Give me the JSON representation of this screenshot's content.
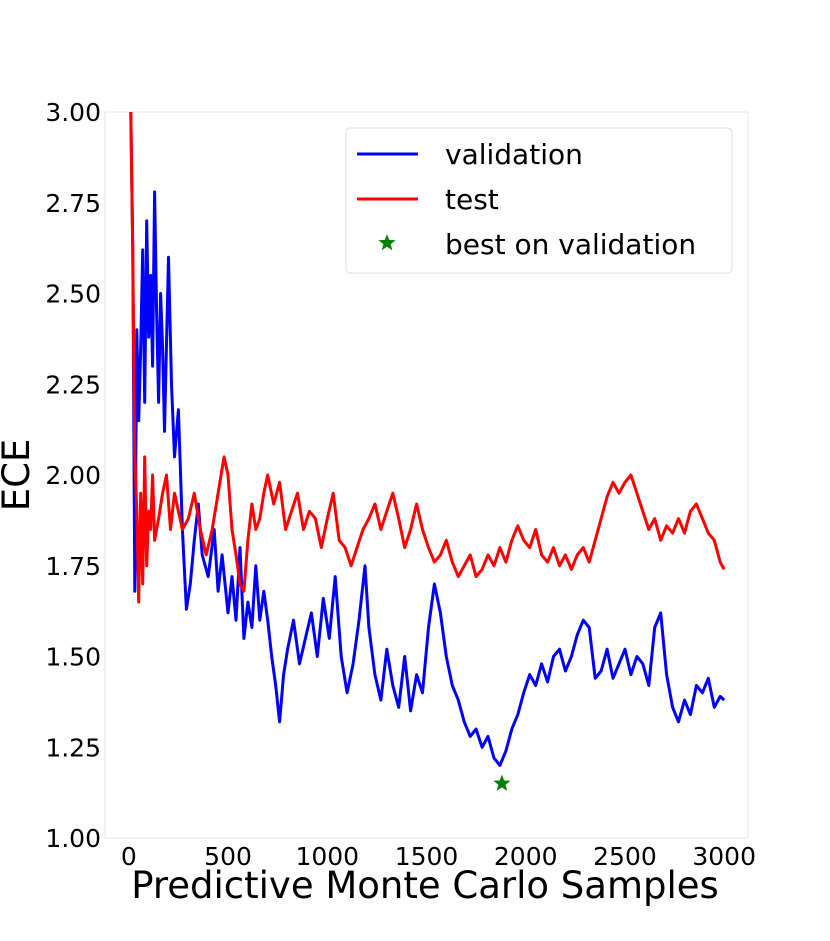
{
  "chart_data": {
    "type": "line",
    "title": "",
    "xlabel": "Predictive Monte Carlo Samples",
    "ylabel": "ECE",
    "xlim": [
      -120,
      3120
    ],
    "ylim": [
      1.0,
      3.0
    ],
    "xticks": [
      "0",
      "500",
      "1000",
      "1500",
      "2000",
      "2500",
      "3000"
    ],
    "yticks": [
      "1.00",
      "1.25",
      "1.50",
      "1.75",
      "2.00",
      "2.25",
      "2.50",
      "2.75",
      "3.00"
    ],
    "grid": false,
    "legend_position": "top-right",
    "series": [
      {
        "name": "validation",
        "color": "#0000ff",
        "points": [
          [
            10,
            3.0
          ],
          [
            20,
            2.62
          ],
          [
            30,
            1.68
          ],
          [
            40,
            2.4
          ],
          [
            50,
            2.15
          ],
          [
            60,
            2.35
          ],
          [
            70,
            2.62
          ],
          [
            80,
            2.2
          ],
          [
            90,
            2.7
          ],
          [
            100,
            2.38
          ],
          [
            110,
            2.55
          ],
          [
            120,
            2.3
          ],
          [
            130,
            2.78
          ],
          [
            140,
            2.45
          ],
          [
            150,
            2.2
          ],
          [
            160,
            2.5
          ],
          [
            170,
            2.35
          ],
          [
            180,
            2.12
          ],
          [
            200,
            2.6
          ],
          [
            215,
            2.25
          ],
          [
            230,
            2.05
          ],
          [
            250,
            2.18
          ],
          [
            270,
            1.85
          ],
          [
            290,
            1.63
          ],
          [
            310,
            1.7
          ],
          [
            330,
            1.82
          ],
          [
            350,
            1.92
          ],
          [
            370,
            1.78
          ],
          [
            400,
            1.72
          ],
          [
            430,
            1.85
          ],
          [
            450,
            1.68
          ],
          [
            470,
            1.78
          ],
          [
            500,
            1.62
          ],
          [
            520,
            1.72
          ],
          [
            540,
            1.6
          ],
          [
            560,
            1.8
          ],
          [
            580,
            1.55
          ],
          [
            600,
            1.65
          ],
          [
            620,
            1.58
          ],
          [
            640,
            1.75
          ],
          [
            660,
            1.6
          ],
          [
            680,
            1.68
          ],
          [
            700,
            1.6
          ],
          [
            720,
            1.5
          ],
          [
            740,
            1.42
          ],
          [
            760,
            1.32
          ],
          [
            780,
            1.45
          ],
          [
            800,
            1.52
          ],
          [
            830,
            1.6
          ],
          [
            860,
            1.48
          ],
          [
            890,
            1.55
          ],
          [
            920,
            1.62
          ],
          [
            950,
            1.5
          ],
          [
            980,
            1.66
          ],
          [
            1010,
            1.55
          ],
          [
            1040,
            1.72
          ],
          [
            1070,
            1.5
          ],
          [
            1100,
            1.4
          ],
          [
            1130,
            1.48
          ],
          [
            1160,
            1.6
          ],
          [
            1190,
            1.75
          ],
          [
            1210,
            1.58
          ],
          [
            1240,
            1.45
          ],
          [
            1270,
            1.38
          ],
          [
            1300,
            1.52
          ],
          [
            1330,
            1.42
          ],
          [
            1360,
            1.36
          ],
          [
            1390,
            1.5
          ],
          [
            1420,
            1.35
          ],
          [
            1450,
            1.45
          ],
          [
            1480,
            1.4
          ],
          [
            1510,
            1.58
          ],
          [
            1540,
            1.7
          ],
          [
            1570,
            1.62
          ],
          [
            1600,
            1.5
          ],
          [
            1630,
            1.42
          ],
          [
            1660,
            1.38
          ],
          [
            1690,
            1.32
          ],
          [
            1720,
            1.28
          ],
          [
            1750,
            1.3
          ],
          [
            1780,
            1.25
          ],
          [
            1810,
            1.28
          ],
          [
            1840,
            1.22
          ],
          [
            1870,
            1.2
          ],
          [
            1900,
            1.24
          ],
          [
            1930,
            1.3
          ],
          [
            1960,
            1.34
          ],
          [
            1990,
            1.4
          ],
          [
            2020,
            1.45
          ],
          [
            2050,
            1.42
          ],
          [
            2080,
            1.48
          ],
          [
            2110,
            1.43
          ],
          [
            2140,
            1.5
          ],
          [
            2170,
            1.52
          ],
          [
            2200,
            1.46
          ],
          [
            2230,
            1.5
          ],
          [
            2260,
            1.56
          ],
          [
            2290,
            1.6
          ],
          [
            2320,
            1.58
          ],
          [
            2350,
            1.44
          ],
          [
            2380,
            1.46
          ],
          [
            2410,
            1.52
          ],
          [
            2440,
            1.44
          ],
          [
            2470,
            1.48
          ],
          [
            2500,
            1.52
          ],
          [
            2530,
            1.45
          ],
          [
            2560,
            1.5
          ],
          [
            2590,
            1.48
          ],
          [
            2620,
            1.42
          ],
          [
            2650,
            1.58
          ],
          [
            2680,
            1.62
          ],
          [
            2710,
            1.45
          ],
          [
            2740,
            1.36
          ],
          [
            2770,
            1.32
          ],
          [
            2800,
            1.38
          ],
          [
            2830,
            1.34
          ],
          [
            2860,
            1.42
          ],
          [
            2890,
            1.4
          ],
          [
            2920,
            1.44
          ],
          [
            2950,
            1.36
          ],
          [
            2980,
            1.39
          ],
          [
            3000,
            1.38
          ]
        ]
      },
      {
        "name": "test",
        "color": "#ff0000",
        "points": [
          [
            10,
            3.0
          ],
          [
            20,
            2.6
          ],
          [
            30,
            2.05
          ],
          [
            40,
            1.9
          ],
          [
            50,
            1.65
          ],
          [
            60,
            1.95
          ],
          [
            70,
            1.7
          ],
          [
            80,
            2.05
          ],
          [
            90,
            1.75
          ],
          [
            100,
            1.9
          ],
          [
            110,
            1.85
          ],
          [
            120,
            2.0
          ],
          [
            130,
            1.82
          ],
          [
            150,
            1.88
          ],
          [
            170,
            1.95
          ],
          [
            190,
            2.0
          ],
          [
            210,
            1.85
          ],
          [
            230,
            1.95
          ],
          [
            250,
            1.9
          ],
          [
            270,
            1.85
          ],
          [
            300,
            1.88
          ],
          [
            330,
            1.95
          ],
          [
            360,
            1.85
          ],
          [
            390,
            1.78
          ],
          [
            420,
            1.85
          ],
          [
            450,
            1.95
          ],
          [
            480,
            2.05
          ],
          [
            500,
            2.0
          ],
          [
            520,
            1.85
          ],
          [
            540,
            1.78
          ],
          [
            560,
            1.7
          ],
          [
            580,
            1.68
          ],
          [
            600,
            1.82
          ],
          [
            620,
            1.92
          ],
          [
            640,
            1.85
          ],
          [
            660,
            1.88
          ],
          [
            680,
            1.95
          ],
          [
            700,
            2.0
          ],
          [
            730,
            1.92
          ],
          [
            760,
            1.98
          ],
          [
            790,
            1.85
          ],
          [
            820,
            1.9
          ],
          [
            850,
            1.95
          ],
          [
            880,
            1.85
          ],
          [
            910,
            1.9
          ],
          [
            940,
            1.88
          ],
          [
            970,
            1.8
          ],
          [
            1000,
            1.88
          ],
          [
            1030,
            1.95
          ],
          [
            1060,
            1.82
          ],
          [
            1090,
            1.8
          ],
          [
            1120,
            1.75
          ],
          [
            1150,
            1.8
          ],
          [
            1180,
            1.85
          ],
          [
            1210,
            1.88
          ],
          [
            1240,
            1.92
          ],
          [
            1270,
            1.85
          ],
          [
            1300,
            1.9
          ],
          [
            1330,
            1.95
          ],
          [
            1360,
            1.88
          ],
          [
            1390,
            1.8
          ],
          [
            1420,
            1.85
          ],
          [
            1450,
            1.92
          ],
          [
            1480,
            1.85
          ],
          [
            1510,
            1.8
          ],
          [
            1540,
            1.76
          ],
          [
            1570,
            1.78
          ],
          [
            1600,
            1.82
          ],
          [
            1630,
            1.76
          ],
          [
            1660,
            1.72
          ],
          [
            1690,
            1.75
          ],
          [
            1720,
            1.78
          ],
          [
            1750,
            1.72
          ],
          [
            1780,
            1.74
          ],
          [
            1810,
            1.78
          ],
          [
            1840,
            1.75
          ],
          [
            1870,
            1.8
          ],
          [
            1900,
            1.76
          ],
          [
            1930,
            1.82
          ],
          [
            1960,
            1.86
          ],
          [
            1990,
            1.82
          ],
          [
            2020,
            1.8
          ],
          [
            2050,
            1.85
          ],
          [
            2080,
            1.78
          ],
          [
            2110,
            1.76
          ],
          [
            2140,
            1.8
          ],
          [
            2170,
            1.75
          ],
          [
            2200,
            1.78
          ],
          [
            2230,
            1.74
          ],
          [
            2260,
            1.78
          ],
          [
            2290,
            1.8
          ],
          [
            2320,
            1.76
          ],
          [
            2350,
            1.82
          ],
          [
            2380,
            1.88
          ],
          [
            2410,
            1.94
          ],
          [
            2440,
            1.98
          ],
          [
            2470,
            1.95
          ],
          [
            2500,
            1.98
          ],
          [
            2530,
            2.0
          ],
          [
            2560,
            1.95
          ],
          [
            2590,
            1.9
          ],
          [
            2620,
            1.85
          ],
          [
            2650,
            1.88
          ],
          [
            2680,
            1.82
          ],
          [
            2710,
            1.86
          ],
          [
            2740,
            1.84
          ],
          [
            2770,
            1.88
          ],
          [
            2800,
            1.84
          ],
          [
            2830,
            1.9
          ],
          [
            2860,
            1.92
          ],
          [
            2890,
            1.88
          ],
          [
            2920,
            1.84
          ],
          [
            2950,
            1.82
          ],
          [
            2980,
            1.76
          ],
          [
            3000,
            1.74
          ]
        ]
      },
      {
        "name": "best on validation",
        "color": "#008000",
        "marker": "star",
        "points": [
          [
            1880,
            1.15
          ]
        ]
      }
    ]
  }
}
